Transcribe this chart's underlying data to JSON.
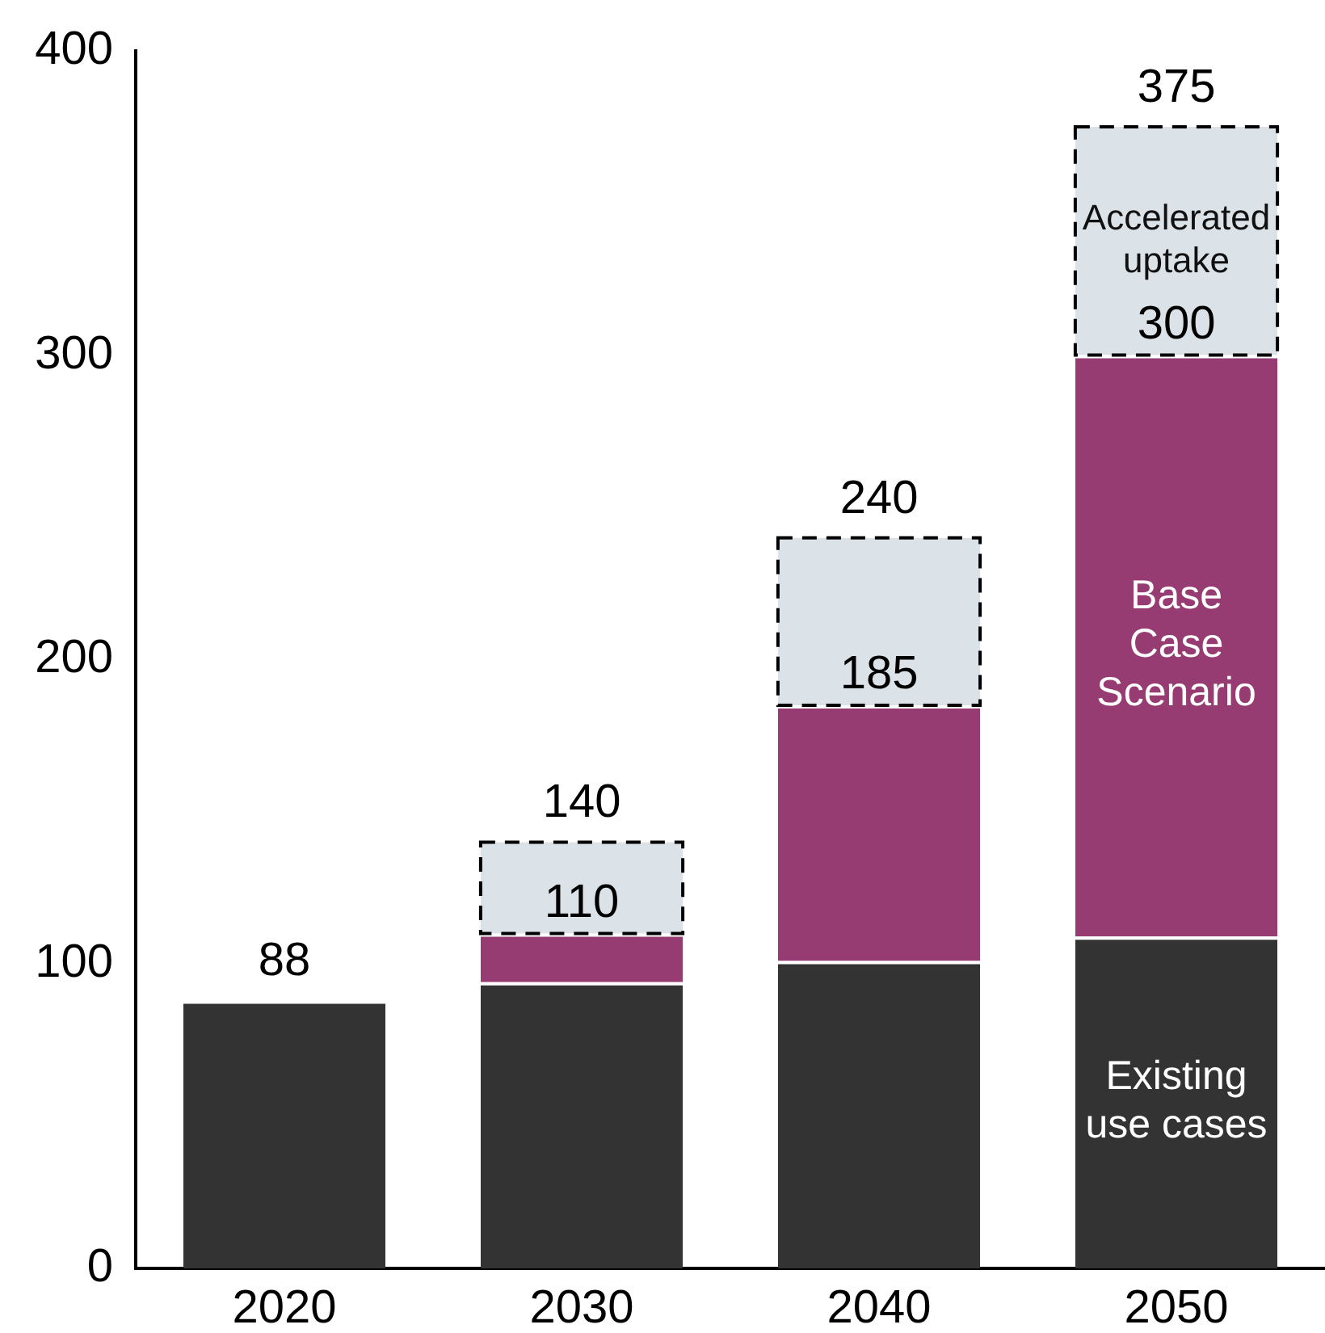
{
  "chart_data": {
    "type": "bar",
    "stacked": true,
    "categories": [
      "2020",
      "2030",
      "2040",
      "2050"
    ],
    "series": [
      {
        "name": "Existing use cases",
        "color": "#333333",
        "values": [
          88,
          94,
          101,
          109
        ]
      },
      {
        "name": "Base Case Scenario",
        "color": "#963c73",
        "values": [
          null,
          16,
          84,
          191
        ]
      },
      {
        "name": "Accelerated uptake",
        "color": "#dbe3e9",
        "values": [
          null,
          30,
          55,
          75
        ],
        "line_style": "dashed"
      }
    ],
    "ylim": [
      0,
      400
    ],
    "yticks": [
      0,
      100,
      200,
      300,
      400
    ],
    "grid": false,
    "legend": false,
    "totals": [
      "88",
      "140",
      "240",
      "375"
    ],
    "annotations": [
      {
        "text": "110",
        "x": "2030",
        "y": 110
      },
      {
        "text": "185",
        "x": "2040",
        "y": 185
      },
      {
        "text": "300",
        "x": "2050",
        "y": 300
      }
    ]
  }
}
